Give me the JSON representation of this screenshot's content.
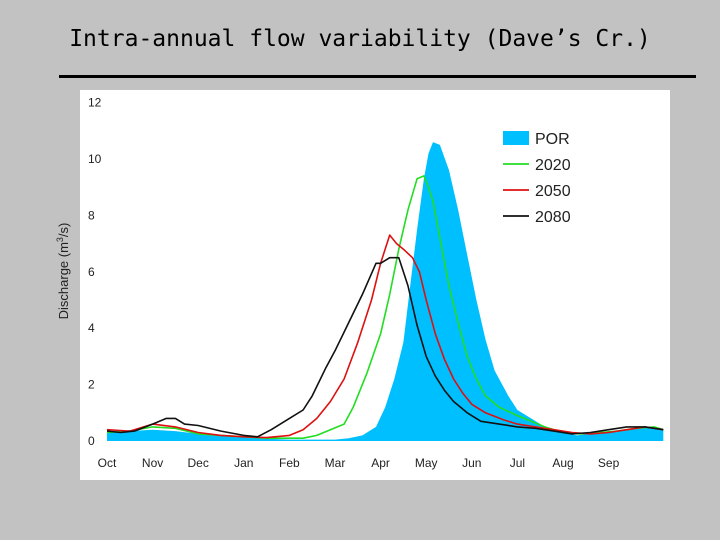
{
  "title": "Intra-annual flow variability (Dave’s Cr.)",
  "chart_data": {
    "type": "area",
    "title": "Intra-annual flow variability (Dave’s Cr.)",
    "ylabel_parts": [
      "Discharge (m",
      "3",
      "/s)"
    ],
    "ylim": [
      0,
      12
    ],
    "yticks": [
      0,
      2,
      4,
      6,
      8,
      10,
      12
    ],
    "xlim": [
      0,
      12.2
    ],
    "xticks": [
      {
        "label": "Oct",
        "x": 0
      },
      {
        "label": "Nov",
        "x": 1
      },
      {
        "label": "Dec",
        "x": 2
      },
      {
        "label": "Jan",
        "x": 3
      },
      {
        "label": "Feb",
        "x": 4
      },
      {
        "label": "Mar",
        "x": 5
      },
      {
        "label": "Apr",
        "x": 6
      },
      {
        "label": "May",
        "x": 7
      },
      {
        "label": "Jun",
        "x": 8
      },
      {
        "label": "Jul",
        "x": 9
      },
      {
        "label": "Aug",
        "x": 10
      },
      {
        "label": "Sep",
        "x": 11
      }
    ],
    "grid": false,
    "legend_position": "top-right",
    "colors": {
      "POR": "#00bfff",
      "2020": "#22dd22",
      "2050": "#dd1111",
      "2080": "#111111"
    },
    "series": [
      {
        "name": "POR",
        "style": "area",
        "color": "#00bfff",
        "x": [
          0,
          0.5,
          1,
          1.5,
          2,
          2.5,
          3,
          3.5,
          4,
          4.5,
          5,
          5.3,
          5.6,
          5.9,
          6.1,
          6.3,
          6.5,
          6.65,
          6.8,
          6.95,
          7.05,
          7.15,
          7.3,
          7.5,
          7.7,
          7.9,
          8.1,
          8.3,
          8.5,
          8.8,
          9,
          9.3,
          9.6,
          10,
          10.3,
          10.6,
          11,
          11.4,
          11.8,
          12.2
        ],
        "y": [
          0.3,
          0.35,
          0.4,
          0.35,
          0.25,
          0.2,
          0.15,
          0.08,
          0.05,
          0.05,
          0.05,
          0.1,
          0.2,
          0.5,
          1.2,
          2.2,
          3.5,
          5.5,
          7.5,
          9.3,
          10.2,
          10.6,
          10.5,
          9.6,
          8.2,
          6.6,
          5.0,
          3.6,
          2.5,
          1.6,
          1.1,
          0.8,
          0.5,
          0.3,
          0.2,
          0.25,
          0.3,
          0.4,
          0.5,
          0.4
        ]
      },
      {
        "name": "2020",
        "style": "line",
        "color": "#22dd22",
        "x": [
          0,
          0.5,
          1,
          1.5,
          2,
          2.5,
          3,
          3.5,
          4,
          4.3,
          4.6,
          4.9,
          5.2,
          5.4,
          5.7,
          6,
          6.2,
          6.4,
          6.6,
          6.8,
          6.95,
          7.05,
          7.15,
          7.3,
          7.5,
          7.7,
          7.9,
          8.1,
          8.3,
          8.6,
          9,
          9.3,
          9.6,
          10,
          10.4,
          10.8,
          11.2,
          11.6,
          12,
          12.2
        ],
        "y": [
          0.3,
          0.35,
          0.5,
          0.45,
          0.25,
          0.2,
          0.15,
          0.1,
          0.1,
          0.1,
          0.2,
          0.4,
          0.6,
          1.2,
          2.4,
          3.8,
          5.2,
          6.8,
          8.2,
          9.3,
          9.4,
          9.0,
          8.5,
          7.2,
          5.5,
          4.2,
          3.0,
          2.2,
          1.6,
          1.2,
          0.9,
          0.7,
          0.5,
          0.3,
          0.25,
          0.3,
          0.35,
          0.45,
          0.5,
          0.4
        ]
      },
      {
        "name": "2050",
        "style": "line",
        "color": "#dd1111",
        "x": [
          0,
          0.5,
          1,
          1.5,
          2,
          2.5,
          3,
          3.5,
          4,
          4.3,
          4.6,
          4.9,
          5.2,
          5.5,
          5.8,
          6,
          6.2,
          6.35,
          6.5,
          6.7,
          6.85,
          7,
          7.2,
          7.4,
          7.6,
          7.8,
          8,
          8.3,
          8.7,
          9,
          9.4,
          9.8,
          10.2,
          10.6,
          11,
          11.4,
          11.8,
          12.2
        ],
        "y": [
          0.4,
          0.35,
          0.6,
          0.5,
          0.3,
          0.2,
          0.15,
          0.12,
          0.2,
          0.4,
          0.8,
          1.4,
          2.2,
          3.5,
          5.0,
          6.3,
          7.3,
          7.0,
          6.8,
          6.5,
          6.0,
          5.0,
          3.8,
          2.9,
          2.2,
          1.7,
          1.3,
          1.0,
          0.75,
          0.6,
          0.5,
          0.4,
          0.3,
          0.25,
          0.3,
          0.4,
          0.5,
          0.4
        ]
      },
      {
        "name": "2080",
        "style": "line",
        "color": "#111111",
        "x": [
          0,
          0.3,
          0.6,
          1,
          1.3,
          1.5,
          1.7,
          2,
          2.5,
          3,
          3.3,
          3.6,
          4,
          4.3,
          4.5,
          4.8,
          5,
          5.3,
          5.6,
          5.9,
          6,
          6.2,
          6.4,
          6.6,
          6.8,
          7,
          7.2,
          7.4,
          7.6,
          7.9,
          8.2,
          8.6,
          9,
          9.4,
          9.8,
          10.2,
          10.6,
          11,
          11.4,
          11.8,
          12.2
        ],
        "y": [
          0.35,
          0.3,
          0.35,
          0.6,
          0.8,
          0.8,
          0.6,
          0.55,
          0.35,
          0.2,
          0.15,
          0.4,
          0.8,
          1.1,
          1.6,
          2.6,
          3.2,
          4.2,
          5.2,
          6.3,
          6.3,
          6.5,
          6.5,
          5.5,
          4.1,
          3.0,
          2.3,
          1.8,
          1.4,
          1.0,
          0.7,
          0.6,
          0.5,
          0.45,
          0.35,
          0.25,
          0.3,
          0.4,
          0.5,
          0.5,
          0.4
        ]
      }
    ]
  }
}
